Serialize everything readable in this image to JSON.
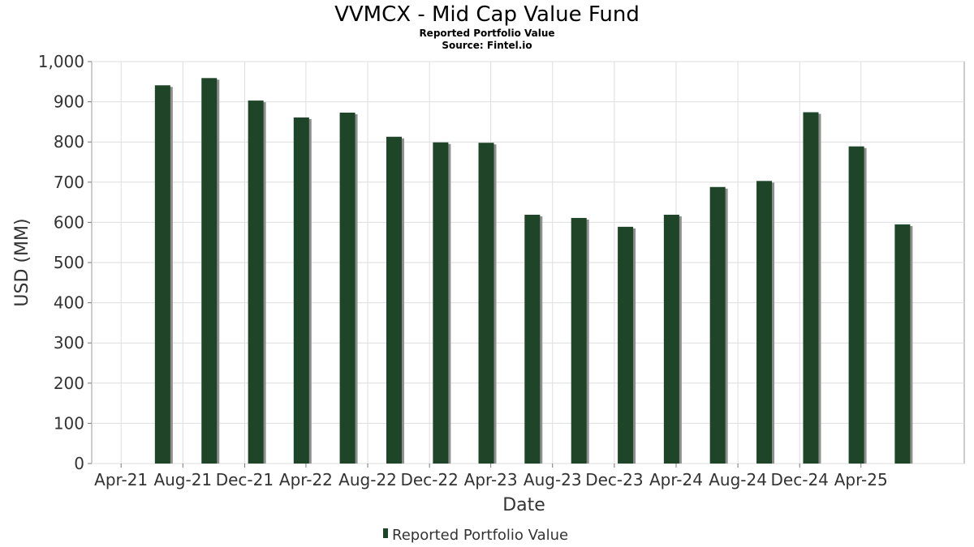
{
  "chart_data": {
    "type": "bar",
    "title": "VVMCX - Mid Cap Value Fund",
    "subtitle": "Reported Portfolio Value",
    "source": "Source: Fintel.io",
    "xlabel": "Date",
    "ylabel": "USD (MM)",
    "ylim": [
      0,
      1000
    ],
    "yticks": [
      "0",
      "100",
      "200",
      "300",
      "400",
      "500",
      "600",
      "700",
      "800",
      "900",
      "1,000"
    ],
    "ytick_values": [
      0,
      100,
      200,
      300,
      400,
      500,
      600,
      700,
      800,
      900,
      1000
    ],
    "xticks": [
      "Apr-21",
      "Aug-21",
      "Dec-21",
      "Apr-22",
      "Aug-22",
      "Dec-22",
      "Apr-23",
      "Aug-23",
      "Dec-23",
      "Apr-24",
      "Aug-24",
      "Dec-24",
      "Apr-25"
    ],
    "x": [
      "2021-06-30",
      "2021-09-30",
      "2021-12-31",
      "2022-03-31",
      "2022-06-30",
      "2022-09-30",
      "2022-12-31",
      "2023-03-31",
      "2023-06-30",
      "2023-09-30",
      "2023-12-31",
      "2024-03-31",
      "2024-06-30",
      "2024-09-30",
      "2024-12-31",
      "2025-03-31",
      "2025-06-30"
    ],
    "grid": true,
    "legend_position": "bottom",
    "series": [
      {
        "name": "Reported Portfolio Value",
        "color": "#1e4528",
        "values": [
          941,
          959,
          903,
          861,
          873,
          813,
          799,
          798,
          619,
          611,
          589,
          619,
          688,
          703,
          874,
          789,
          595
        ]
      }
    ]
  }
}
